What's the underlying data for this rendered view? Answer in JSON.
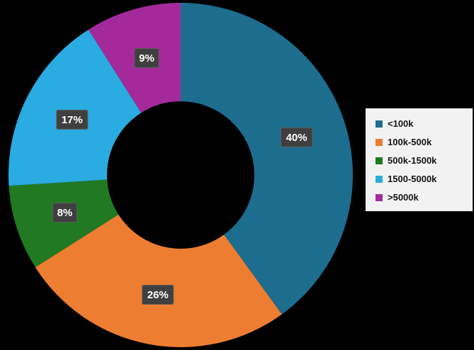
{
  "chart_data": {
    "type": "pie",
    "subtype": "donut",
    "title": "",
    "categories": [
      "<100k",
      "100k-500k",
      "500k-1500k",
      "1500-5000k",
      ">5000k"
    ],
    "values": [
      40,
      26,
      8,
      17,
      9
    ],
    "data_labels": [
      "40%",
      "26%",
      "8%",
      "17%",
      "9%"
    ],
    "colors": [
      "#1d6d8e",
      "#ed7d31",
      "#217a21",
      "#2aabe2",
      "#a42a9c"
    ],
    "start_angle_deg": 0,
    "direction": "clockwise",
    "donut_hole_ratio": 0.43,
    "legend": {
      "position": "right",
      "entries": [
        "<100k",
        "100k-500k",
        "500k-1500k",
        "1500-5000k",
        ">5000k"
      ]
    },
    "background": "#000000",
    "label_box": {
      "fill": "#3f3f3f",
      "border": "#5d5d5d",
      "text_color": "#ffffff"
    },
    "legend_bg": "#f2f2f2"
  }
}
